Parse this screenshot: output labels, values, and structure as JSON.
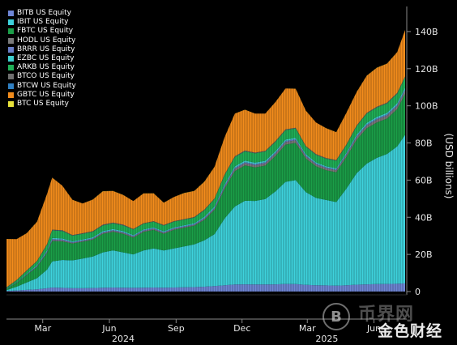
{
  "colors": {
    "background": "#000000",
    "axis": "#8a8a8a",
    "grid": "#2b2b2b"
  },
  "chart_data": {
    "type": "area",
    "title": "",
    "xlabel": "",
    "ylabel": "(USD billions)",
    "stacked": true,
    "ylim": [
      0,
      150
    ],
    "grid": false,
    "legend_placement": "top-left",
    "y_ticks": [
      {
        "value": 0,
        "label": "0"
      },
      {
        "value": 20,
        "label": "20B"
      },
      {
        "value": 40,
        "label": "40B"
      },
      {
        "value": 60,
        "label": "60B"
      },
      {
        "value": 80,
        "label": "80B"
      },
      {
        "value": 100,
        "label": "100B"
      },
      {
        "value": 120,
        "label": "120B"
      },
      {
        "value": 140,
        "label": "140B"
      }
    ],
    "x_ticks": [
      {
        "date": "2024-03-01",
        "label": "Mar"
      },
      {
        "date": "2024-06-01",
        "label": "Jun"
      },
      {
        "date": "2024-09-01",
        "label": "Sep"
      },
      {
        "date": "2024-12-01",
        "label": "Dec"
      },
      {
        "date": "2025-03-01",
        "label": "Mar"
      },
      {
        "date": "2025-06-01",
        "label": "Jun"
      }
    ],
    "year_labels": [
      {
        "date": "2024-06-20",
        "label": "2024"
      },
      {
        "date": "2025-03-28",
        "label": "2025"
      }
    ],
    "x_range": [
      "2024-01-11",
      "2025-07-14"
    ],
    "x": [
      "2024-01-11",
      "2024-01-25",
      "2024-02-08",
      "2024-02-22",
      "2024-03-07",
      "2024-03-14",
      "2024-03-28",
      "2024-04-11",
      "2024-04-25",
      "2024-05-09",
      "2024-05-23",
      "2024-06-06",
      "2024-06-20",
      "2024-07-04",
      "2024-07-18",
      "2024-08-01",
      "2024-08-15",
      "2024-08-29",
      "2024-09-12",
      "2024-09-26",
      "2024-10-10",
      "2024-10-24",
      "2024-11-07",
      "2024-11-21",
      "2024-12-05",
      "2024-12-19",
      "2025-01-02",
      "2025-01-16",
      "2025-01-30",
      "2025-02-13",
      "2025-02-27",
      "2025-03-13",
      "2025-03-27",
      "2025-04-10",
      "2025-04-24",
      "2025-05-08",
      "2025-05-22",
      "2025-06-05",
      "2025-06-19",
      "2025-07-03",
      "2025-07-14"
    ],
    "series": [
      {
        "name": "BTC US Equity",
        "color": "#e8e23a",
        "values": [
          0.05,
          0.05,
          0.05,
          0.05,
          0.05,
          0.05,
          0.05,
          0.05,
          0.05,
          0.05,
          0.05,
          0.05,
          0.05,
          0.05,
          0.05,
          0.05,
          0.05,
          0.05,
          0.05,
          0.05,
          0.05,
          0.05,
          0.05,
          0.05,
          0.05,
          0.05,
          0.05,
          0.05,
          0.05,
          0.05,
          0.05,
          0.05,
          0.05,
          0.05,
          0.05,
          0.05,
          0.05,
          0.05,
          0.05,
          0.05,
          0.05
        ]
      },
      {
        "name": "GBTC US Equity",
        "color": "#f28c1c",
        "values": [
          26,
          22,
          20,
          21,
          27,
          28,
          24,
          19,
          16,
          17,
          18,
          17,
          16,
          15,
          16,
          15,
          12,
          13,
          14,
          14,
          15,
          17,
          20,
          23,
          22,
          21,
          20,
          21,
          22,
          21,
          19,
          17,
          16,
          15,
          17,
          18,
          20,
          21,
          21,
          22,
          25
        ]
      },
      {
        "name": "BTCW US Equity",
        "color": "#2f7fc1",
        "values": [
          0.1,
          0.1,
          0.1,
          0.1,
          0.1,
          0.1,
          0.1,
          0.1,
          0.1,
          0.1,
          0.1,
          0.1,
          0.1,
          0.1,
          0.1,
          0.1,
          0.1,
          0.1,
          0.1,
          0.1,
          0.1,
          0.1,
          0.1,
          0.1,
          0.1,
          0.1,
          0.1,
          0.1,
          0.1,
          0.1,
          0.1,
          0.1,
          0.1,
          0.1,
          0.1,
          0.1,
          0.1,
          0.1,
          0.1,
          0.1,
          0.1
        ]
      },
      {
        "name": "BTCO US Equity",
        "color": "#6f6f6f",
        "values": [
          0.1,
          0.1,
          0.2,
          0.2,
          0.3,
          0.3,
          0.3,
          0.2,
          0.2,
          0.2,
          0.3,
          0.3,
          0.3,
          0.2,
          0.2,
          0.2,
          0.2,
          0.2,
          0.2,
          0.2,
          0.2,
          0.2,
          0.3,
          0.3,
          0.3,
          0.3,
          0.3,
          0.3,
          0.3,
          0.3,
          0.3,
          0.3,
          0.3,
          0.3,
          0.3,
          0.3,
          0.3,
          0.3,
          0.3,
          0.3,
          0.3
        ]
      },
      {
        "name": "ARKB US Equity",
        "color": "#20b158",
        "values": [
          0.5,
          1.0,
          1.5,
          2,
          3,
          4,
          4,
          3,
          3,
          3,
          3,
          3,
          3,
          3,
          3,
          3,
          3,
          3,
          3,
          3,
          3.5,
          4,
          5,
          5,
          5,
          5,
          5,
          5,
          5,
          5,
          4,
          4,
          4,
          4,
          4,
          4.5,
          5,
          5,
          5,
          5,
          5.5
        ]
      },
      {
        "name": "EZBC US Equity",
        "color": "#3fcfcf",
        "values": [
          0.1,
          0.2,
          0.3,
          0.4,
          0.6,
          0.7,
          0.6,
          0.5,
          0.5,
          0.5,
          0.6,
          0.6,
          0.6,
          0.5,
          0.5,
          0.5,
          0.5,
          0.5,
          0.5,
          0.5,
          0.6,
          0.7,
          0.8,
          0.8,
          0.8,
          0.8,
          0.8,
          0.8,
          0.8,
          0.8,
          0.7,
          0.6,
          0.6,
          0.6,
          0.7,
          0.8,
          0.8,
          0.9,
          0.9,
          0.9,
          1.0
        ]
      },
      {
        "name": "BRRR US Equity",
        "color": "#6a7ec8",
        "values": [
          0.1,
          0.1,
          0.2,
          0.3,
          0.4,
          0.5,
          0.5,
          0.4,
          0.4,
          0.4,
          0.4,
          0.4,
          0.4,
          0.4,
          0.4,
          0.4,
          0.4,
          0.4,
          0.4,
          0.4,
          0.5,
          0.5,
          0.6,
          0.6,
          0.6,
          0.6,
          0.6,
          0.6,
          0.6,
          0.6,
          0.5,
          0.5,
          0.5,
          0.5,
          0.5,
          0.6,
          0.6,
          0.6,
          0.7,
          0.7,
          0.7
        ]
      },
      {
        "name": "HODL US Equity",
        "color": "#7a7a7a",
        "values": [
          0.1,
          0.1,
          0.2,
          0.3,
          0.4,
          0.5,
          0.5,
          0.4,
          0.4,
          0.4,
          0.5,
          0.5,
          0.5,
          0.5,
          0.5,
          0.5,
          0.5,
          0.5,
          0.5,
          0.5,
          0.6,
          0.7,
          1.0,
          1.2,
          1.2,
          1.2,
          1.2,
          1.3,
          1.4,
          1.4,
          1.2,
          1.1,
          1.1,
          1.1,
          1.2,
          1.4,
          1.5,
          1.6,
          1.6,
          1.7,
          1.8
        ]
      },
      {
        "name": "FBTC US Equity",
        "color": "#1b9e48",
        "values": [
          0.5,
          2,
          4,
          6,
          9,
          11,
          10,
          9,
          9,
          9,
          10,
          10,
          10,
          9,
          10,
          10,
          9,
          10,
          10,
          10,
          11,
          13,
          16,
          19,
          19,
          18,
          18,
          19,
          20,
          20,
          18,
          17,
          16,
          16,
          17,
          18,
          19,
          19,
          19,
          20,
          22
        ]
      },
      {
        "name": "IBIT US Equity",
        "color": "#3ed2dc",
        "values": [
          0.5,
          2,
          4,
          6,
          10,
          14,
          15,
          15,
          16,
          17,
          19,
          20,
          19,
          18,
          20,
          21,
          20,
          21,
          22,
          23,
          25,
          28,
          36,
          42,
          45,
          45,
          46,
          50,
          55,
          56,
          50,
          47,
          46,
          45,
          52,
          60,
          65,
          68,
          70,
          74,
          80
        ]
      },
      {
        "name": "BITB US Equity",
        "color": "#6f86d6",
        "values": [
          0.3,
          0.6,
          0.9,
          1.2,
          1.8,
          2.2,
          2.0,
          1.8,
          1.8,
          1.9,
          2.1,
          2.2,
          2.1,
          2.0,
          2.1,
          2.2,
          2.1,
          2.2,
          2.3,
          2.4,
          2.6,
          2.9,
          3.4,
          3.8,
          3.9,
          3.8,
          3.8,
          3.9,
          4.1,
          4.0,
          3.6,
          3.4,
          3.3,
          3.2,
          3.4,
          3.7,
          3.9,
          4.0,
          4.1,
          4.2,
          4.4
        ]
      }
    ],
    "legend": [
      "BITB US Equity",
      "IBIT US Equity",
      "FBTC US Equity",
      "HODL US Equity",
      "BRRR US Equity",
      "EZBC US Equity",
      "ARKB US Equity",
      "BTCO US Equity",
      "BTCW US Equity",
      "GBTC US Equity",
      "BTC US Equity"
    ]
  },
  "watermark": {
    "logo_glyph": "B",
    "text_top": "币界网",
    "text_bottom": "金色财经"
  }
}
